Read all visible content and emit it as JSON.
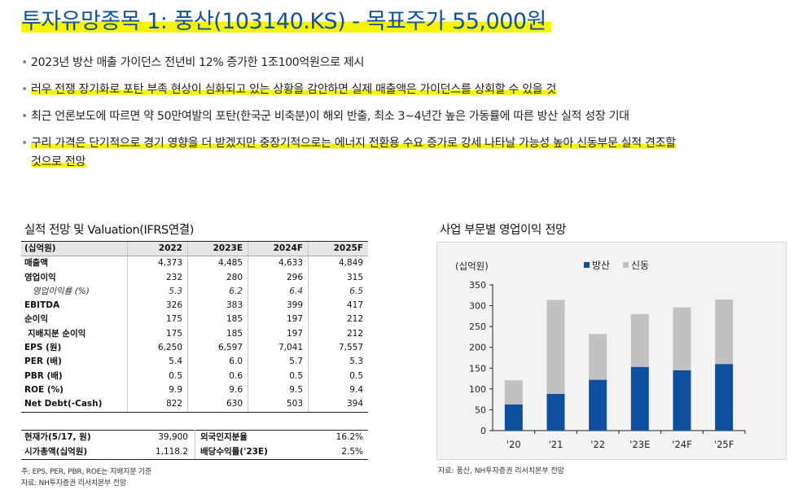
{
  "title": "투자유망종목 1: 풍산(103140.KS) - 목표주가 55,000원",
  "bullets": [
    {
      "text": "2023년 방산 매출 가이던스 전년비 12% 증가한 1조100억원으로 제시",
      "highlight": false
    },
    {
      "text": "러우 전쟁 장기화로 포탄 부족 현상이 심화되고 있는 상황을 감안하면 실제 매출액은 가이던스를 상회할 수 있을 것",
      "highlight": true
    },
    {
      "text": "최근 언론보도에 따르면 약 50만여발의 포탄(한국군 비축분)이 해외 반출, 최소 3~4년간 높은 가동률에 따른 방산 실적 성장 기대",
      "highlight": false
    },
    {
      "text": "구리 가격은 단기적으로 경기 영향을 더 받겠지만 중장기적으로는 에너지 전환용 수요 증가로 강세 나타날 가능성 높아 신동부문 실적 견조할",
      "text2": "것으로 전망",
      "highlight": true
    }
  ],
  "table_section": {
    "title": "실적 전망 및 Valuation(IFRS연결)",
    "headers": [
      "(십억원)",
      "2022",
      "2023E",
      "2024F",
      "2025F"
    ],
    "rows": [
      {
        "label": "매출액",
        "values": [
          "4,373",
          "4,485",
          "4,633",
          "4,849"
        ],
        "style": "bold"
      },
      {
        "label": "영업이익",
        "values": [
          "232",
          "280",
          "296",
          "315"
        ],
        "style": "bold"
      },
      {
        "label": "영업이익률 (%)",
        "values": [
          "5.3",
          "6.2",
          "6.4",
          "6.5"
        ],
        "style": "sub"
      },
      {
        "label": "EBITDA",
        "values": [
          "326",
          "383",
          "399",
          "417"
        ],
        "style": "bold"
      },
      {
        "label": "순이익",
        "values": [
          "175",
          "185",
          "197",
          "212"
        ],
        "style": "bold"
      },
      {
        "label": "지배지분 순이익",
        "values": [
          "175",
          "185",
          "197",
          "212"
        ],
        "style": "ind"
      },
      {
        "label": "EPS (원)",
        "values": [
          "6,250",
          "6,597",
          "7,041",
          "7,557"
        ],
        "style": "bold"
      },
      {
        "label": "PER (배)",
        "values": [
          "5.4",
          "6.0",
          "5.7",
          "5.3"
        ],
        "style": "bold"
      },
      {
        "label": "PBR (배)",
        "values": [
          "0.5",
          "0.6",
          "0.5",
          "0.5"
        ],
        "style": "bold"
      },
      {
        "label": "ROE (%)",
        "values": [
          "9.9",
          "9.6",
          "9.5",
          "9.4"
        ],
        "style": "bold"
      },
      {
        "label": "Net Debt(-Cash)",
        "values": [
          "822",
          "630",
          "503",
          "394"
        ],
        "style": "bold"
      }
    ],
    "market": [
      {
        "label": "현재가(5/17, 원)",
        "value": "39,900",
        "label2": "외국인지분율",
        "value2": "16.2%"
      },
      {
        "label": "시가총액(십억원)",
        "value": "1,118.2",
        "label2": "배당수익률('23E)",
        "value2": "2.5%"
      }
    ],
    "note1": "주: EPS, PER, PBR, ROE는 지배지분 기준",
    "note2": "자료: NH투자증권 리서치본부 전망"
  },
  "chart_section": {
    "title": "사업 부문별 영업이익 전망",
    "source": "자료: 풍산, NH투자증권 리서치본부 전망",
    "colors": {
      "방산": "#0e4e9f",
      "신동": "#c1c1c1"
    }
  },
  "chart_data": {
    "type": "bar",
    "stacked": true,
    "unit_label": "(십억원)",
    "categories": [
      "'20",
      "'21",
      "'22",
      "'23E",
      "'24F",
      "'25F"
    ],
    "series": [
      {
        "name": "방산",
        "values": [
          63,
          88,
          122,
          153,
          145,
          160
        ]
      },
      {
        "name": "신동",
        "values": [
          58,
          226,
          110,
          127,
          151,
          155
        ]
      }
    ],
    "ylim": [
      0,
      350
    ],
    "yticks": [
      0,
      50,
      100,
      150,
      200,
      250,
      300,
      350
    ],
    "legend_position": "top-center",
    "grid": false
  }
}
